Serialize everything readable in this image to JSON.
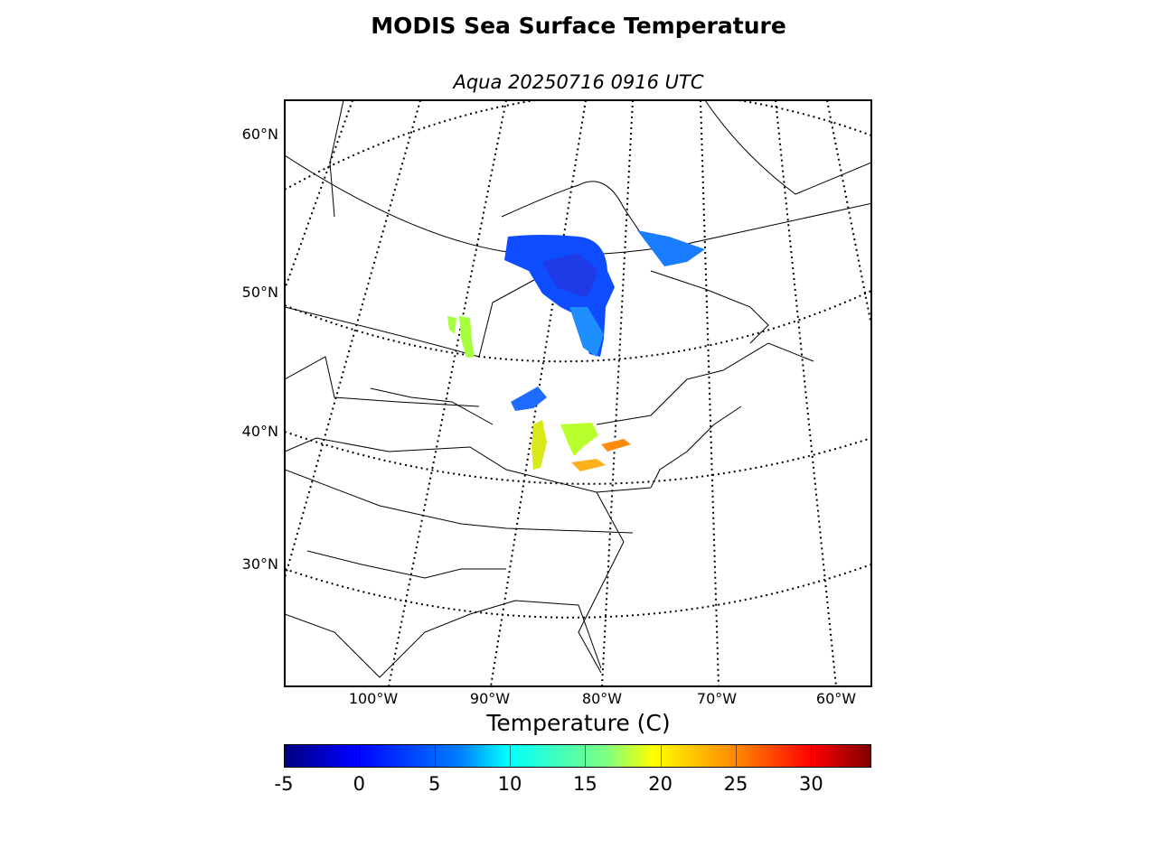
{
  "title": "MODIS Sea Surface Temperature",
  "subtitle": "Aqua 20250716 0916 UTC",
  "lat_labels": [
    "60°N",
    "50°N",
    "40°N",
    "30°N"
  ],
  "lon_labels": [
    "100°W",
    "90°W",
    "80°W",
    "70°W",
    "60°W"
  ],
  "colorbar": {
    "label": "Temperature (C)",
    "ticks": [
      "-5",
      "0",
      "5",
      "10",
      "15",
      "20",
      "25",
      "30"
    ],
    "range": [
      -5,
      34
    ],
    "colormap": "jet"
  },
  "colors": {
    "cold": "#0033ff",
    "cool": "#1e90ff",
    "mild": "#a6ff3c",
    "warm": "#f0d020",
    "hot": "#ff8a10"
  }
}
